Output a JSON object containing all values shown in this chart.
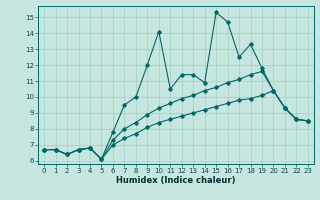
{
  "title": "",
  "xlabel": "Humidex (Indice chaleur)",
  "background_color": "#c8e6e0",
  "grid_color": "#9fcfc8",
  "line_color": "#006868",
  "xlim": [
    -0.5,
    23.5
  ],
  "ylim": [
    5.8,
    15.7
  ],
  "xticks": [
    0,
    1,
    2,
    3,
    4,
    5,
    6,
    7,
    8,
    9,
    10,
    11,
    12,
    13,
    14,
    15,
    16,
    17,
    18,
    19,
    20,
    21,
    22,
    23
  ],
  "yticks": [
    6,
    7,
    8,
    9,
    10,
    11,
    12,
    13,
    14,
    15
  ],
  "line1_x": [
    0,
    1,
    2,
    3,
    4,
    5,
    6,
    7,
    8,
    9,
    10,
    11,
    12,
    13,
    14,
    15,
    16,
    17,
    18,
    19,
    20,
    21,
    22,
    23
  ],
  "line1_y": [
    6.7,
    6.7,
    6.4,
    6.7,
    6.8,
    6.1,
    7.8,
    9.5,
    10.0,
    12.0,
    14.1,
    10.5,
    11.4,
    11.4,
    10.9,
    15.3,
    14.7,
    12.5,
    13.3,
    11.8,
    10.4,
    9.3,
    8.6,
    8.5
  ],
  "line2_x": [
    0,
    1,
    2,
    3,
    4,
    5,
    6,
    7,
    8,
    9,
    10,
    11,
    12,
    13,
    14,
    15,
    16,
    17,
    18,
    19,
    20,
    21,
    22,
    23
  ],
  "line2_y": [
    6.7,
    6.7,
    6.4,
    6.7,
    6.8,
    6.1,
    7.3,
    8.0,
    8.4,
    8.9,
    9.3,
    9.6,
    9.9,
    10.1,
    10.4,
    10.6,
    10.9,
    11.1,
    11.4,
    11.6,
    10.4,
    9.3,
    8.6,
    8.5
  ],
  "line3_x": [
    0,
    1,
    2,
    3,
    4,
    5,
    6,
    7,
    8,
    9,
    10,
    11,
    12,
    13,
    14,
    15,
    16,
    17,
    18,
    19,
    20,
    21,
    22,
    23
  ],
  "line3_y": [
    6.7,
    6.7,
    6.4,
    6.7,
    6.8,
    6.1,
    7.0,
    7.4,
    7.7,
    8.1,
    8.4,
    8.6,
    8.8,
    9.0,
    9.2,
    9.4,
    9.6,
    9.8,
    9.9,
    10.1,
    10.4,
    9.3,
    8.6,
    8.5
  ]
}
